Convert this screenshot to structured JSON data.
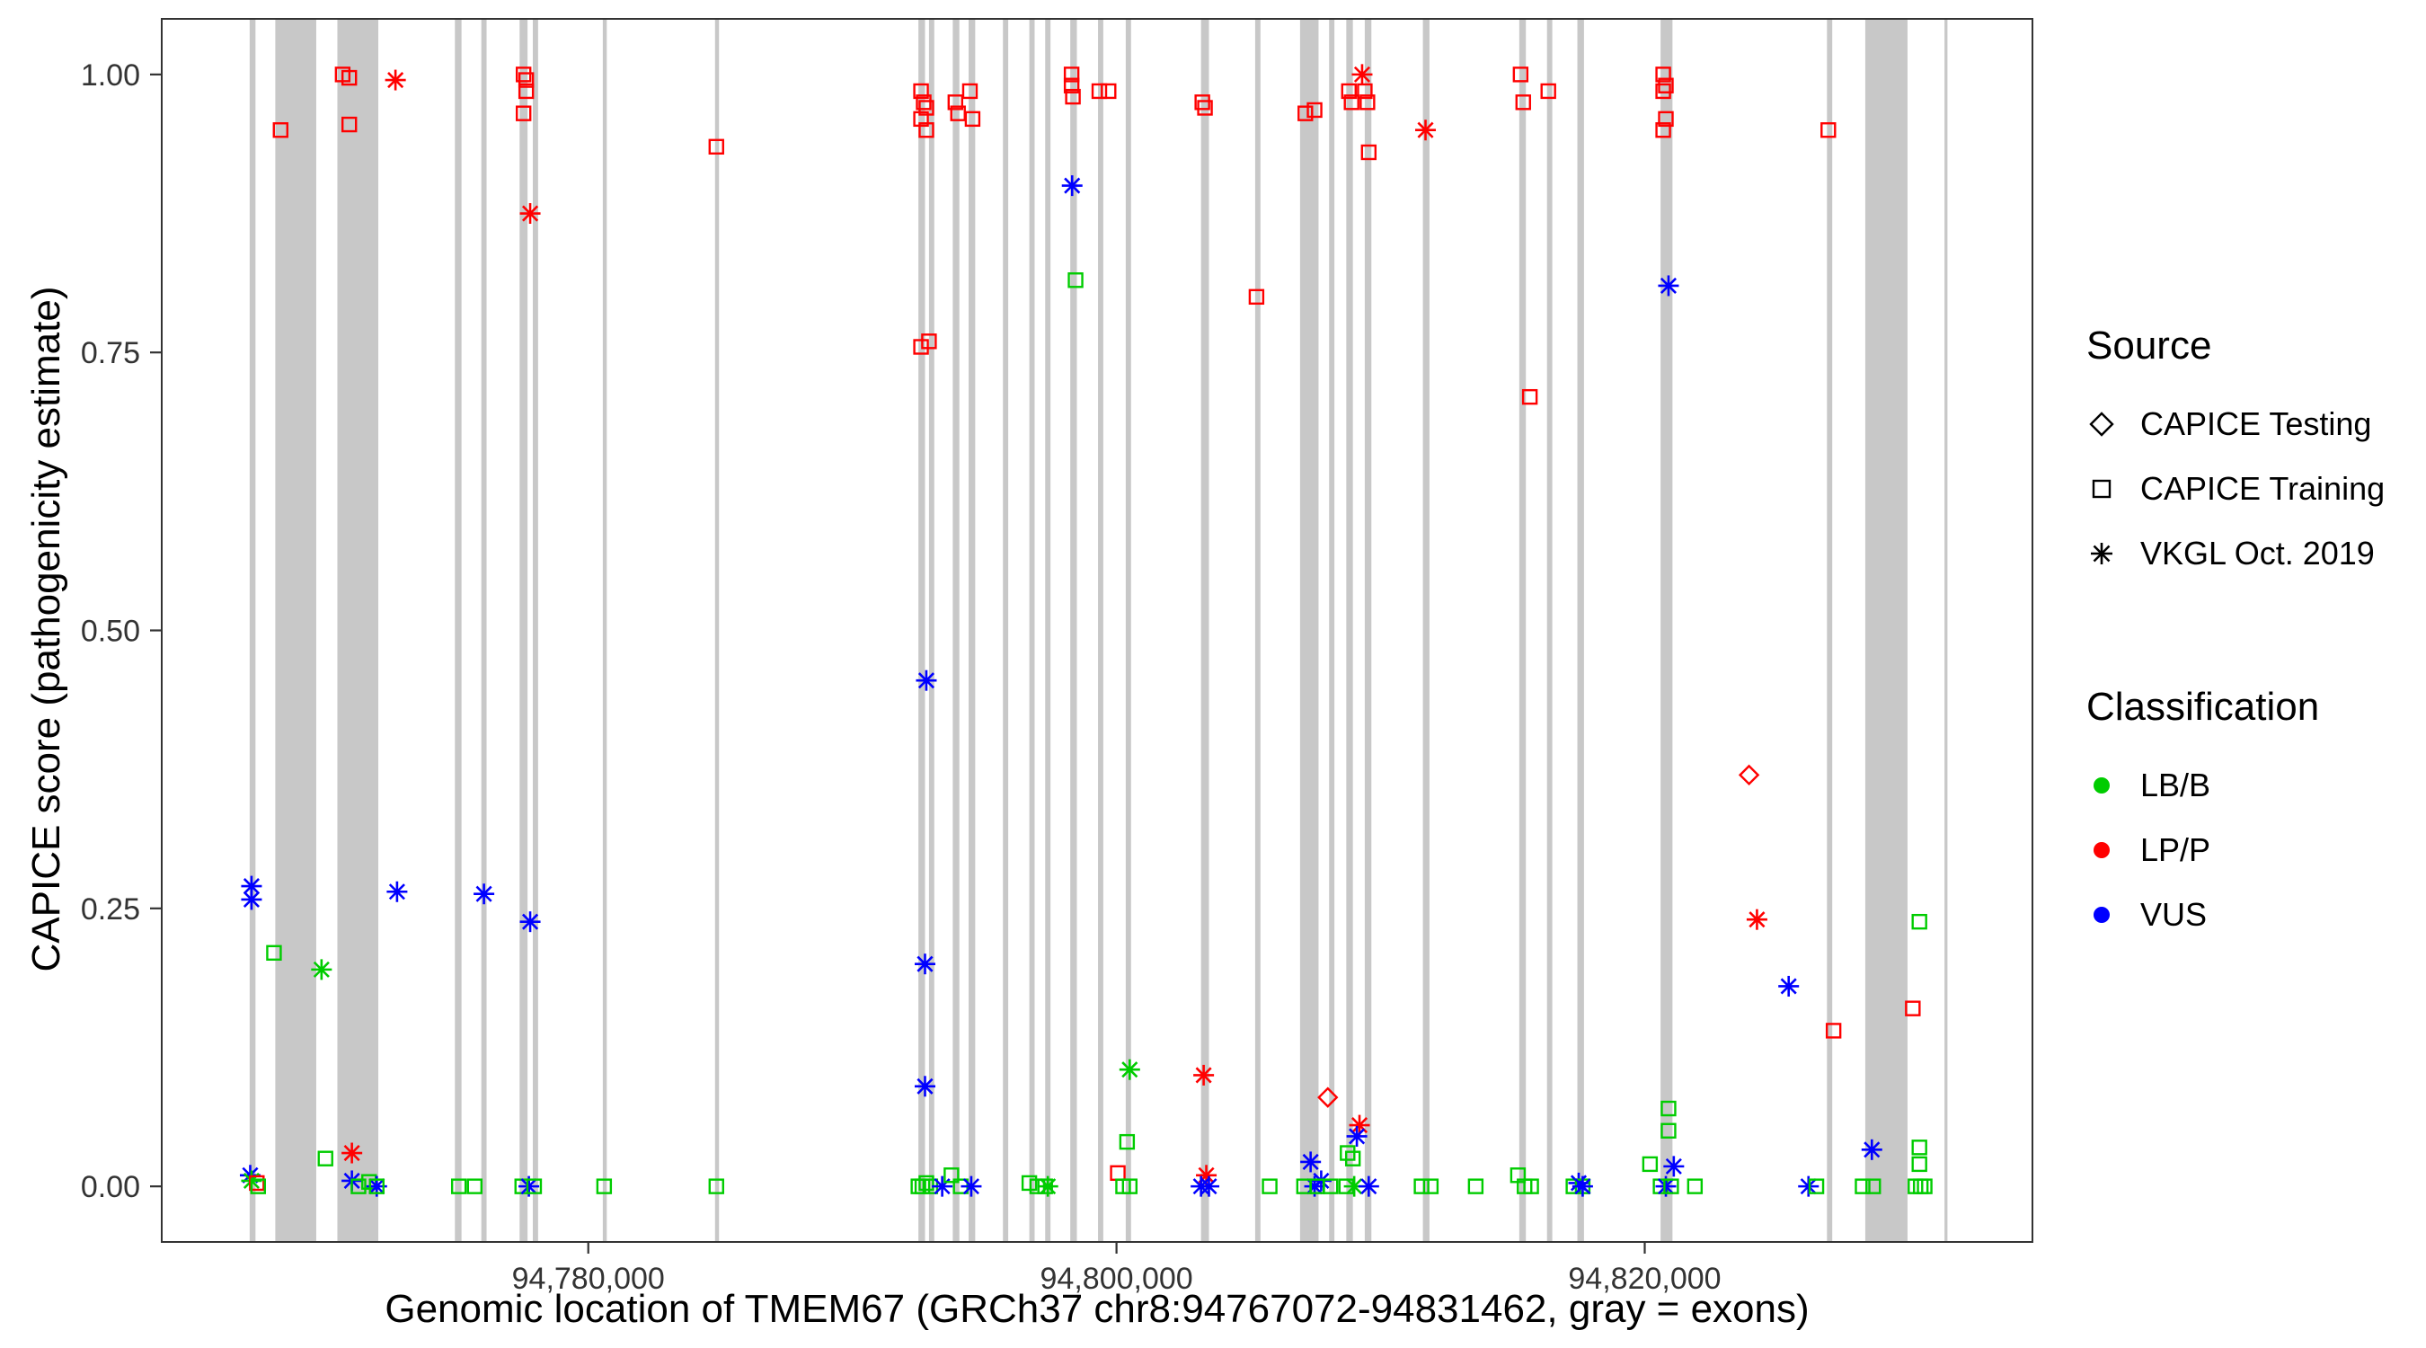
{
  "figure": {
    "x_axis_title": "Genomic location of TMEM67 (GRCh37 chr8:94767072-94831462, gray = exons)",
    "y_axis_title": "CAPICE score (pathogenicity estimate)"
  },
  "legend": {
    "source": {
      "title": "Source",
      "items": [
        {
          "label": "CAPICE Testing",
          "shape": "diamond"
        },
        {
          "label": "CAPICE Training",
          "shape": "square"
        },
        {
          "label": "VKGL Oct. 2019",
          "shape": "asterisk"
        }
      ]
    },
    "classification": {
      "title": "Classification",
      "items": [
        {
          "label": "LB/B",
          "color": "#00cc00"
        },
        {
          "label": "LP/P",
          "color": "#ff0000"
        },
        {
          "label": "VUS",
          "color": "#0000ff"
        }
      ]
    }
  },
  "chart_data": {
    "type": "scatter",
    "title": "",
    "xlabel": "Genomic location of TMEM67 (GRCh37 chr8:94767072-94831462, gray = exons)",
    "ylabel": "CAPICE score (pathogenicity estimate)",
    "xlim": [
      94763850,
      94834680
    ],
    "ylim": [
      -0.05,
      1.05
    ],
    "grid": false,
    "legend_position": "right",
    "x_ticks": [
      {
        "v": 94780000,
        "label": "94,780,000"
      },
      {
        "v": 94800000,
        "label": "94,800,000"
      },
      {
        "v": 94820000,
        "label": "94,820,000"
      }
    ],
    "y_ticks": [
      {
        "v": 0.0,
        "label": "0.00"
      },
      {
        "v": 0.25,
        "label": "0.25"
      },
      {
        "v": 0.5,
        "label": "0.50"
      },
      {
        "v": 0.75,
        "label": "0.75"
      },
      {
        "v": 1.0,
        "label": "1.00"
      }
    ],
    "exon_color": "#c8c8c8",
    "colors": {
      "LB/B": "#00cc00",
      "LP/P": "#ff0000",
      "VUS": "#0000ff"
    },
    "shapes": {
      "test": "diamond",
      "train": "square",
      "vkgl": "asterisk"
    },
    "source_labels": {
      "test": "CAPICE Testing",
      "train": "CAPICE Training",
      "vkgl": "VKGL Oct. 2019"
    },
    "exons": [
      [
        94767180,
        94767400
      ],
      [
        94768150,
        94769700
      ],
      [
        94770500,
        94772050
      ],
      [
        94774950,
        94775200
      ],
      [
        94775950,
        94776150
      ],
      [
        94777400,
        94777700
      ],
      [
        94777900,
        94778100
      ],
      [
        94780550,
        94780700
      ],
      [
        94784800,
        94784950
      ],
      [
        94792500,
        94792750
      ],
      [
        94792900,
        94793100
      ],
      [
        94793800,
        94794050
      ],
      [
        94794400,
        94794650
      ],
      [
        94795700,
        94795900
      ],
      [
        94796700,
        94796900
      ],
      [
        94797300,
        94797500
      ],
      [
        94798250,
        94798500
      ],
      [
        94799300,
        94799500
      ],
      [
        94800350,
        94800550
      ],
      [
        94803200,
        94803500
      ],
      [
        94805250,
        94805450
      ],
      [
        94806950,
        94807650
      ],
      [
        94808050,
        94808250
      ],
      [
        94808700,
        94808950
      ],
      [
        94809400,
        94809650
      ],
      [
        94811600,
        94811850
      ],
      [
        94815250,
        94815500
      ],
      [
        94816300,
        94816500
      ],
      [
        94817450,
        94817700
      ],
      [
        94820600,
        94821050
      ],
      [
        94826900,
        94827100
      ],
      [
        94828350,
        94829950
      ],
      [
        94831350,
        94831462
      ]
    ],
    "points": [
      {
        "x": 94767250,
        "y": 0.27,
        "s": "vkgl",
        "c": "VUS"
      },
      {
        "x": 94767250,
        "y": 0.258,
        "s": "vkgl",
        "c": "VUS"
      },
      {
        "x": 94767200,
        "y": 0.01,
        "s": "vkgl",
        "c": "VUS"
      },
      {
        "x": 94767250,
        "y": 0.005,
        "s": "vkgl",
        "c": "LB/B"
      },
      {
        "x": 94767450,
        "y": 0.003,
        "s": "train",
        "c": "LP/P"
      },
      {
        "x": 94767500,
        "y": 0.0,
        "s": "train",
        "c": "LB/B"
      },
      {
        "x": 94768100,
        "y": 0.21,
        "s": "train",
        "c": "LB/B"
      },
      {
        "x": 94768350,
        "y": 0.95,
        "s": "train",
        "c": "LP/P"
      },
      {
        "x": 94769900,
        "y": 0.195,
        "s": "vkgl",
        "c": "LB/B"
      },
      {
        "x": 94770050,
        "y": 0.025,
        "s": "train",
        "c": "LB/B"
      },
      {
        "x": 94770700,
        "y": 1.0,
        "s": "train",
        "c": "LP/P"
      },
      {
        "x": 94770950,
        "y": 0.997,
        "s": "train",
        "c": "LP/P"
      },
      {
        "x": 94770950,
        "y": 0.955,
        "s": "train",
        "c": "LP/P"
      },
      {
        "x": 94771050,
        "y": 0.03,
        "s": "vkgl",
        "c": "LP/P"
      },
      {
        "x": 94771050,
        "y": 0.005,
        "s": "vkgl",
        "c": "VUS"
      },
      {
        "x": 94771300,
        "y": 0.0,
        "s": "train",
        "c": "LB/B"
      },
      {
        "x": 94771700,
        "y": 0.004,
        "s": "train",
        "c": "LB/B"
      },
      {
        "x": 94771990,
        "y": 0.0,
        "s": "vkgl",
        "c": "VUS"
      },
      {
        "x": 94771990,
        "y": 0.0,
        "s": "train",
        "c": "LB/B"
      },
      {
        "x": 94772700,
        "y": 0.995,
        "s": "vkgl",
        "c": "LP/P"
      },
      {
        "x": 94772760,
        "y": 0.265,
        "s": "vkgl",
        "c": "VUS"
      },
      {
        "x": 94775100,
        "y": 0.0,
        "s": "train",
        "c": "LB/B"
      },
      {
        "x": 94775700,
        "y": 0.0,
        "s": "train",
        "c": "LB/B"
      },
      {
        "x": 94776050,
        "y": 0.263,
        "s": "vkgl",
        "c": "VUS"
      },
      {
        "x": 94777550,
        "y": 1.0,
        "s": "train",
        "c": "LP/P"
      },
      {
        "x": 94777650,
        "y": 0.995,
        "s": "train",
        "c": "LP/P"
      },
      {
        "x": 94777650,
        "y": 0.985,
        "s": "train",
        "c": "LP/P"
      },
      {
        "x": 94777550,
        "y": 0.965,
        "s": "train",
        "c": "LP/P"
      },
      {
        "x": 94777800,
        "y": 0.875,
        "s": "vkgl",
        "c": "LP/P"
      },
      {
        "x": 94777800,
        "y": 0.238,
        "s": "vkgl",
        "c": "VUS"
      },
      {
        "x": 94777500,
        "y": 0.0,
        "s": "train",
        "c": "LB/B"
      },
      {
        "x": 94777750,
        "y": 0.0,
        "s": "vkgl",
        "c": "VUS"
      },
      {
        "x": 94777950,
        "y": 0.0,
        "s": "train",
        "c": "LB/B"
      },
      {
        "x": 94780600,
        "y": 0.0,
        "s": "train",
        "c": "LB/B"
      },
      {
        "x": 94784850,
        "y": 0.935,
        "s": "train",
        "c": "LP/P"
      },
      {
        "x": 94784850,
        "y": 0.0,
        "s": "train",
        "c": "LB/B"
      },
      {
        "x": 94792600,
        "y": 0.985,
        "s": "train",
        "c": "LP/P"
      },
      {
        "x": 94792700,
        "y": 0.975,
        "s": "train",
        "c": "LP/P"
      },
      {
        "x": 94792800,
        "y": 0.97,
        "s": "train",
        "c": "LP/P"
      },
      {
        "x": 94792600,
        "y": 0.96,
        "s": "train",
        "c": "LP/P"
      },
      {
        "x": 94792800,
        "y": 0.95,
        "s": "train",
        "c": "LP/P"
      },
      {
        "x": 94792600,
        "y": 0.755,
        "s": "train",
        "c": "LP/P"
      },
      {
        "x": 94792900,
        "y": 0.76,
        "s": "train",
        "c": "LP/P"
      },
      {
        "x": 94792800,
        "y": 0.455,
        "s": "vkgl",
        "c": "VUS"
      },
      {
        "x": 94792750,
        "y": 0.2,
        "s": "vkgl",
        "c": "VUS"
      },
      {
        "x": 94792750,
        "y": 0.09,
        "s": "vkgl",
        "c": "VUS"
      },
      {
        "x": 94792500,
        "y": 0.0,
        "s": "train",
        "c": "LB/B"
      },
      {
        "x": 94792650,
        "y": 0.0,
        "s": "train",
        "c": "LB/B"
      },
      {
        "x": 94792800,
        "y": 0.003,
        "s": "train",
        "c": "LB/B"
      },
      {
        "x": 94792950,
        "y": 0.0,
        "s": "train",
        "c": "LB/B"
      },
      {
        "x": 94793400,
        "y": 0.0,
        "s": "vkgl",
        "c": "VUS"
      },
      {
        "x": 94793900,
        "y": 0.975,
        "s": "train",
        "c": "LP/P"
      },
      {
        "x": 94794000,
        "y": 0.965,
        "s": "train",
        "c": "LP/P"
      },
      {
        "x": 94794450,
        "y": 0.985,
        "s": "train",
        "c": "LP/P"
      },
      {
        "x": 94794550,
        "y": 0.96,
        "s": "train",
        "c": "LP/P"
      },
      {
        "x": 94793750,
        "y": 0.01,
        "s": "train",
        "c": "LB/B"
      },
      {
        "x": 94794100,
        "y": 0.0,
        "s": "train",
        "c": "LB/B"
      },
      {
        "x": 94794500,
        "y": 0.0,
        "s": "vkgl",
        "c": "VUS"
      },
      {
        "x": 94796700,
        "y": 0.003,
        "s": "train",
        "c": "LB/B"
      },
      {
        "x": 94797000,
        "y": 0.0,
        "s": "train",
        "c": "LB/B"
      },
      {
        "x": 94797300,
        "y": 0.0,
        "s": "train",
        "c": "LB/B"
      },
      {
        "x": 94797400,
        "y": 0.0,
        "s": "vkgl",
        "c": "LB/B"
      },
      {
        "x": 94798300,
        "y": 1.0,
        "s": "train",
        "c": "LP/P"
      },
      {
        "x": 94798300,
        "y": 0.99,
        "s": "train",
        "c": "LP/P"
      },
      {
        "x": 94798350,
        "y": 0.98,
        "s": "train",
        "c": "LP/P"
      },
      {
        "x": 94798320,
        "y": 0.9,
        "s": "vkgl",
        "c": "VUS"
      },
      {
        "x": 94798450,
        "y": 0.815,
        "s": "train",
        "c": "LB/B"
      },
      {
        "x": 94799350,
        "y": 0.985,
        "s": "train",
        "c": "LP/P"
      },
      {
        "x": 94799700,
        "y": 0.985,
        "s": "train",
        "c": "LP/P"
      },
      {
        "x": 94800500,
        "y": 0.105,
        "s": "vkgl",
        "c": "LB/B"
      },
      {
        "x": 94800050,
        "y": 0.012,
        "s": "train",
        "c": "LP/P"
      },
      {
        "x": 94800400,
        "y": 0.04,
        "s": "train",
        "c": "LB/B"
      },
      {
        "x": 94800250,
        "y": 0.0,
        "s": "train",
        "c": "LB/B"
      },
      {
        "x": 94800500,
        "y": 0.0,
        "s": "train",
        "c": "LB/B"
      },
      {
        "x": 94803250,
        "y": 0.975,
        "s": "train",
        "c": "LP/P"
      },
      {
        "x": 94803350,
        "y": 0.97,
        "s": "train",
        "c": "LP/P"
      },
      {
        "x": 94803300,
        "y": 0.1,
        "s": "vkgl",
        "c": "LP/P"
      },
      {
        "x": 94803400,
        "y": 0.01,
        "s": "vkgl",
        "c": "LP/P"
      },
      {
        "x": 94803200,
        "y": 0.0,
        "s": "vkgl",
        "c": "VUS"
      },
      {
        "x": 94803500,
        "y": 0.0,
        "s": "vkgl",
        "c": "VUS"
      },
      {
        "x": 94805300,
        "y": 0.8,
        "s": "train",
        "c": "LP/P"
      },
      {
        "x": 94805800,
        "y": 0.0,
        "s": "train",
        "c": "LB/B"
      },
      {
        "x": 94807150,
        "y": 0.965,
        "s": "train",
        "c": "LP/P"
      },
      {
        "x": 94807500,
        "y": 0.968,
        "s": "train",
        "c": "LP/P"
      },
      {
        "x": 94808000,
        "y": 0.08,
        "s": "test",
        "c": "LP/P"
      },
      {
        "x": 94807350,
        "y": 0.022,
        "s": "vkgl",
        "c": "VUS"
      },
      {
        "x": 94807500,
        "y": 0.0,
        "s": "vkgl",
        "c": "VUS"
      },
      {
        "x": 94807750,
        "y": 0.005,
        "s": "vkgl",
        "c": "VUS"
      },
      {
        "x": 94807100,
        "y": 0.0,
        "s": "train",
        "c": "LB/B"
      },
      {
        "x": 94807600,
        "y": 0.0,
        "s": "train",
        "c": "LB/B"
      },
      {
        "x": 94808100,
        "y": 0.0,
        "s": "train",
        "c": "LB/B"
      },
      {
        "x": 94808800,
        "y": 0.985,
        "s": "train",
        "c": "LP/P"
      },
      {
        "x": 94808900,
        "y": 0.975,
        "s": "train",
        "c": "LP/P"
      },
      {
        "x": 94809400,
        "y": 0.985,
        "s": "train",
        "c": "LP/P"
      },
      {
        "x": 94809500,
        "y": 0.975,
        "s": "train",
        "c": "LP/P"
      },
      {
        "x": 94809300,
        "y": 1.0,
        "s": "vkgl",
        "c": "LP/P"
      },
      {
        "x": 94809550,
        "y": 0.93,
        "s": "train",
        "c": "LP/P"
      },
      {
        "x": 94809200,
        "y": 0.055,
        "s": "vkgl",
        "c": "LP/P"
      },
      {
        "x": 94809100,
        "y": 0.045,
        "s": "vkgl",
        "c": "VUS"
      },
      {
        "x": 94808750,
        "y": 0.03,
        "s": "train",
        "c": "LB/B"
      },
      {
        "x": 94808950,
        "y": 0.025,
        "s": "train",
        "c": "LB/B"
      },
      {
        "x": 94808700,
        "y": 0.0,
        "s": "train",
        "c": "LB/B"
      },
      {
        "x": 94809000,
        "y": 0.0,
        "s": "vkgl",
        "c": "LB/B"
      },
      {
        "x": 94809550,
        "y": 0.0,
        "s": "vkgl",
        "c": "VUS"
      },
      {
        "x": 94811700,
        "y": 0.95,
        "s": "vkgl",
        "c": "LP/P"
      },
      {
        "x": 94811550,
        "y": 0.0,
        "s": "train",
        "c": "LB/B"
      },
      {
        "x": 94811900,
        "y": 0.0,
        "s": "train",
        "c": "LB/B"
      },
      {
        "x": 94813600,
        "y": 0.0,
        "s": "train",
        "c": "LB/B"
      },
      {
        "x": 94815300,
        "y": 1.0,
        "s": "train",
        "c": "LP/P"
      },
      {
        "x": 94815400,
        "y": 0.975,
        "s": "train",
        "c": "LP/P"
      },
      {
        "x": 94815650,
        "y": 0.71,
        "s": "train",
        "c": "LP/P"
      },
      {
        "x": 94816350,
        "y": 0.985,
        "s": "train",
        "c": "LP/P"
      },
      {
        "x": 94815200,
        "y": 0.01,
        "s": "train",
        "c": "LB/B"
      },
      {
        "x": 94815450,
        "y": 0.0,
        "s": "train",
        "c": "LB/B"
      },
      {
        "x": 94815700,
        "y": 0.0,
        "s": "train",
        "c": "LB/B"
      },
      {
        "x": 94817300,
        "y": 0.0,
        "s": "train",
        "c": "LB/B"
      },
      {
        "x": 94817500,
        "y": 0.003,
        "s": "vkgl",
        "c": "VUS"
      },
      {
        "x": 94817650,
        "y": 0.0,
        "s": "train",
        "c": "LB/B"
      },
      {
        "x": 94817650,
        "y": 0.0,
        "s": "vkgl",
        "c": "VUS"
      },
      {
        "x": 94820700,
        "y": 1.0,
        "s": "train",
        "c": "LP/P"
      },
      {
        "x": 94820800,
        "y": 0.99,
        "s": "train",
        "c": "LP/P"
      },
      {
        "x": 94820700,
        "y": 0.985,
        "s": "train",
        "c": "LP/P"
      },
      {
        "x": 94820800,
        "y": 0.96,
        "s": "train",
        "c": "LP/P"
      },
      {
        "x": 94820700,
        "y": 0.95,
        "s": "train",
        "c": "LP/P"
      },
      {
        "x": 94820900,
        "y": 0.81,
        "s": "vkgl",
        "c": "VUS"
      },
      {
        "x": 94820900,
        "y": 0.07,
        "s": "train",
        "c": "LB/B"
      },
      {
        "x": 94820900,
        "y": 0.05,
        "s": "train",
        "c": "LB/B"
      },
      {
        "x": 94820200,
        "y": 0.02,
        "s": "train",
        "c": "LB/B"
      },
      {
        "x": 94821100,
        "y": 0.018,
        "s": "vkgl",
        "c": "VUS"
      },
      {
        "x": 94820600,
        "y": 0.0,
        "s": "train",
        "c": "LB/B"
      },
      {
        "x": 94820800,
        "y": 0.0,
        "s": "vkgl",
        "c": "VUS"
      },
      {
        "x": 94821000,
        "y": 0.0,
        "s": "train",
        "c": "LB/B"
      },
      {
        "x": 94821900,
        "y": 0.0,
        "s": "train",
        "c": "LB/B"
      },
      {
        "x": 94823950,
        "y": 0.37,
        "s": "test",
        "c": "LP/P"
      },
      {
        "x": 94824250,
        "y": 0.24,
        "s": "vkgl",
        "c": "LP/P"
      },
      {
        "x": 94825450,
        "y": 0.18,
        "s": "vkgl",
        "c": "VUS"
      },
      {
        "x": 94826950,
        "y": 0.95,
        "s": "train",
        "c": "LP/P"
      },
      {
        "x": 94827150,
        "y": 0.14,
        "s": "train",
        "c": "LP/P"
      },
      {
        "x": 94826200,
        "y": 0.0,
        "s": "vkgl",
        "c": "VUS"
      },
      {
        "x": 94826500,
        "y": 0.0,
        "s": "train",
        "c": "LB/B"
      },
      {
        "x": 94828250,
        "y": 0.0,
        "s": "train",
        "c": "LB/B"
      },
      {
        "x": 94828600,
        "y": 0.033,
        "s": "vkgl",
        "c": "VUS"
      },
      {
        "x": 94828650,
        "y": 0.0,
        "s": "train",
        "c": "LB/B"
      },
      {
        "x": 94830150,
        "y": 0.16,
        "s": "train",
        "c": "LP/P"
      },
      {
        "x": 94830400,
        "y": 0.238,
        "s": "train",
        "c": "LB/B"
      },
      {
        "x": 94830400,
        "y": 0.035,
        "s": "train",
        "c": "LB/B"
      },
      {
        "x": 94830400,
        "y": 0.02,
        "s": "train",
        "c": "LB/B"
      },
      {
        "x": 94830250,
        "y": 0.0,
        "s": "train",
        "c": "LB/B"
      },
      {
        "x": 94830450,
        "y": 0.0,
        "s": "train",
        "c": "LB/B"
      },
      {
        "x": 94830600,
        "y": 0.0,
        "s": "train",
        "c": "LB/B"
      }
    ]
  }
}
